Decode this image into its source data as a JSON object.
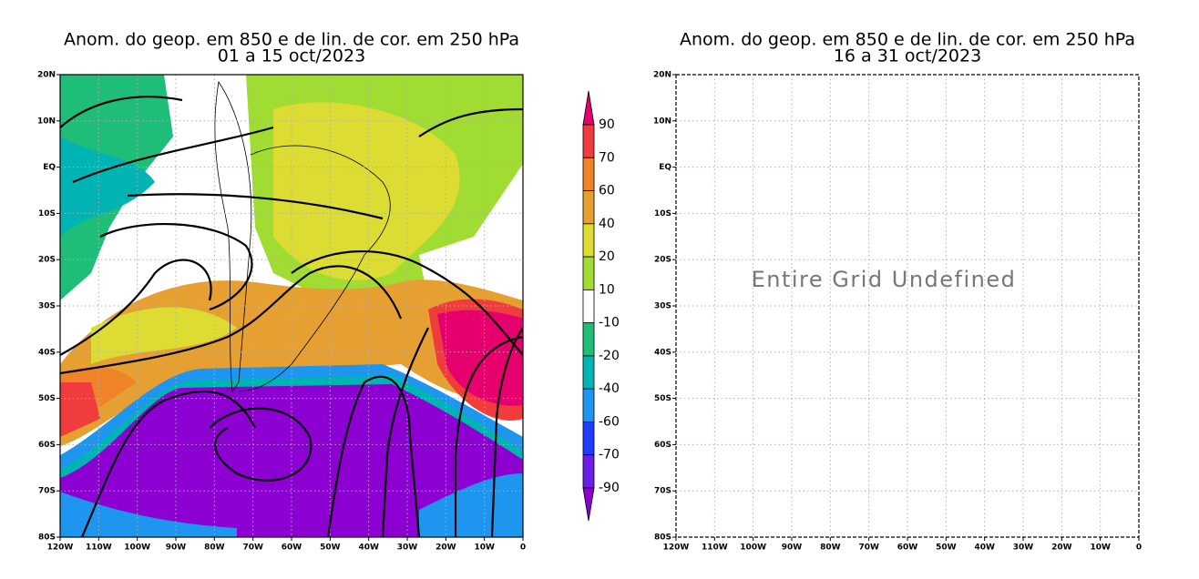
{
  "panels": [
    {
      "title": "Anom. do geop. em 850 e de lin. de cor. em 250 hPa",
      "subtitle": "01 a 15 oct/2023",
      "xticks": [
        "120W",
        "110W",
        "100W",
        "90W",
        "80W",
        "70W",
        "60W",
        "50W",
        "40W",
        "30W",
        "20W",
        "10W",
        "0"
      ],
      "yticks": [
        "20N",
        "10N",
        "EQ",
        "10S",
        "20S",
        "30S",
        "40S",
        "50S",
        "60S",
        "70S",
        "80S"
      ]
    },
    {
      "title": "Anom. do geop. em 850 e de lin. de cor. em 250 hPa",
      "subtitle": "16 a 31 oct/2023",
      "message": "Entire Grid Undefined",
      "xticks": [
        "120W",
        "110W",
        "100W",
        "90W",
        "80W",
        "70W",
        "60W",
        "50W",
        "40W",
        "30W",
        "20W",
        "10W",
        "0"
      ],
      "yticks": [
        "20N",
        "10N",
        "EQ",
        "10S",
        "20S",
        "30S",
        "40S",
        "50S",
        "60S",
        "70S",
        "80S"
      ]
    }
  ],
  "colorbar": {
    "labels": [
      "90",
      "70",
      "60",
      "40",
      "20",
      "10",
      "-10",
      "-20",
      "-40",
      "-60",
      "-70",
      "-90"
    ],
    "colors": [
      "#e6006e",
      "#f03c3c",
      "#f08228",
      "#e6a032",
      "#dcdc32",
      "#a0dc32",
      "#ffffff",
      "#1ebe78",
      "#00b4b4",
      "#1e96f0",
      "#1e3cff",
      "#6a1ee6",
      "#8c00d2"
    ]
  }
}
